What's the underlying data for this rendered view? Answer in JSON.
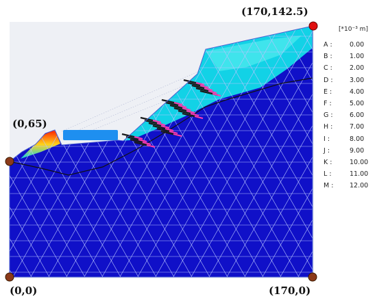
{
  "corner_labels": {
    "top_right": "(170,142.5)",
    "left": "(0,65)",
    "bottom_left": "(0,0)",
    "bottom_right": "(170,0)"
  },
  "legend": {
    "unit": "[*10⁻³ m]",
    "entries": [
      {
        "key": "A :",
        "value": "0.00"
      },
      {
        "key": "B :",
        "value": "1.00"
      },
      {
        "key": "C :",
        "value": "2.00"
      },
      {
        "key": "D :",
        "value": "3.00"
      },
      {
        "key": "E :",
        "value": "4.00"
      },
      {
        "key": "F :",
        "value": "5.00"
      },
      {
        "key": "G :",
        "value": "6.00"
      },
      {
        "key": "H :",
        "value": "7.00"
      },
      {
        "key": "I :",
        "value": "8.00"
      },
      {
        "key": "J :",
        "value": "9.00"
      },
      {
        "key": "K :",
        "value": "10.00"
      },
      {
        "key": "L :",
        "value": "11.00"
      },
      {
        "key": "M :",
        "value": "12.00"
      }
    ]
  },
  "colors": {
    "low": "#1010c8",
    "mid": "#12d2e6",
    "high": "#ff1a00",
    "mesh": "#b8c4ff",
    "corner_marker": "#8b3a1a",
    "top_marker": "#e01010",
    "anchor": "#1a1a1a",
    "anchor_tip": "#ff3cb4"
  }
}
